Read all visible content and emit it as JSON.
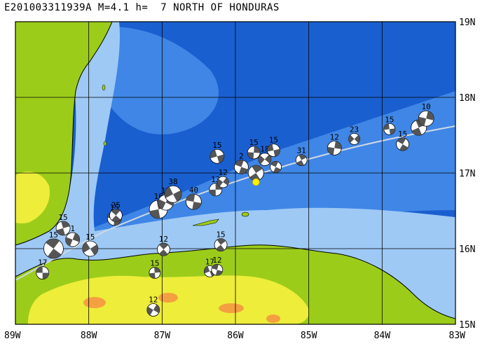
{
  "title": "E201003311939A M=4.1 h=  7 NORTH OF HONDURAS",
  "map": {
    "lon_range": [
      -89,
      -83
    ],
    "lat_range": [
      15,
      19
    ],
    "lon_ticks": [
      {
        "value": -89,
        "label": "89W"
      },
      {
        "value": -88,
        "label": "88W"
      },
      {
        "value": -87,
        "label": "87W"
      },
      {
        "value": -86,
        "label": "86W"
      },
      {
        "value": -85,
        "label": "85W"
      },
      {
        "value": -84,
        "label": "84W"
      },
      {
        "value": -83,
        "label": "83W"
      }
    ],
    "lat_ticks": [
      {
        "value": 19,
        "label": "19N"
      },
      {
        "value": 18,
        "label": "18N"
      },
      {
        "value": 17,
        "label": "17N"
      },
      {
        "value": 16,
        "label": "16N"
      },
      {
        "value": 15,
        "label": "15N"
      }
    ],
    "colors": {
      "deep_ocean": "#1a5fd0",
      "mid_ocean": "#3f86e6",
      "shallow_ocean": "#9ec9f5",
      "lowland": "#9ccc1a",
      "upland": "#eded3a",
      "highland": "#f5a040",
      "epicenter": "#ffee00",
      "fault_line": "#cfd8e6"
    },
    "epicenter": {
      "lon": -85.72,
      "lat": 16.88
    },
    "mechanisms": [
      {
        "lon": -88.63,
        "lat": 15.68,
        "depth": "17",
        "r": 9
      },
      {
        "lon": -88.48,
        "lat": 16.0,
        "depth": "15",
        "r": 14
      },
      {
        "lon": -88.35,
        "lat": 16.27,
        "depth": "15",
        "r": 10
      },
      {
        "lon": -88.22,
        "lat": 16.12,
        "depth": "1",
        "r": 10
      },
      {
        "lon": -87.98,
        "lat": 16.0,
        "depth": "15",
        "r": 11
      },
      {
        "lon": -87.65,
        "lat": 16.4,
        "depth": "15",
        "r": 10
      },
      {
        "lon": -87.63,
        "lat": 16.44,
        "depth": "25",
        "r": 9
      },
      {
        "lon": -87.05,
        "lat": 16.52,
        "depth": "16",
        "r": 13
      },
      {
        "lon": -86.95,
        "lat": 16.61,
        "depth": "12",
        "r": 11
      },
      {
        "lon": -86.85,
        "lat": 16.72,
        "depth": "38",
        "r": 12
      },
      {
        "lon": -86.57,
        "lat": 16.62,
        "depth": "40",
        "r": 11
      },
      {
        "lon": -86.98,
        "lat": 15.99,
        "depth": "12",
        "r": 9
      },
      {
        "lon": -87.1,
        "lat": 15.68,
        "depth": "15",
        "r": 8
      },
      {
        "lon": -87.12,
        "lat": 15.19,
        "depth": "12",
        "r": 9
      },
      {
        "lon": -86.35,
        "lat": 15.7,
        "depth": "17",
        "r": 8
      },
      {
        "lon": -86.25,
        "lat": 15.72,
        "depth": "12",
        "r": 8
      },
      {
        "lon": -86.2,
        "lat": 16.05,
        "depth": "15",
        "r": 9
      },
      {
        "lon": -86.27,
        "lat": 16.78,
        "depth": "13",
        "r": 9
      },
      {
        "lon": -86.17,
        "lat": 16.88,
        "depth": "12",
        "r": 8
      },
      {
        "lon": -86.25,
        "lat": 17.22,
        "depth": "15",
        "r": 10
      },
      {
        "lon": -85.92,
        "lat": 17.08,
        "depth": "2",
        "r": 10
      },
      {
        "lon": -85.72,
        "lat": 17.0,
        "depth": "",
        "r": 11
      },
      {
        "lon": -85.75,
        "lat": 17.27,
        "depth": "15",
        "r": 9
      },
      {
        "lon": -85.6,
        "lat": 17.18,
        "depth": "18",
        "r": 9
      },
      {
        "lon": -85.48,
        "lat": 17.3,
        "depth": "15",
        "r": 9
      },
      {
        "lon": -85.45,
        "lat": 17.08,
        "depth": "",
        "r": 8
      },
      {
        "lon": -85.1,
        "lat": 17.17,
        "depth": "31",
        "r": 8
      },
      {
        "lon": -84.65,
        "lat": 17.33,
        "depth": "12",
        "r": 10
      },
      {
        "lon": -84.38,
        "lat": 17.45,
        "depth": "23",
        "r": 8
      },
      {
        "lon": -83.9,
        "lat": 17.58,
        "depth": "15",
        "r": 8
      },
      {
        "lon": -83.72,
        "lat": 17.38,
        "depth": "15",
        "r": 9
      },
      {
        "lon": -83.5,
        "lat": 17.6,
        "depth": "",
        "r": 11
      },
      {
        "lon": -83.4,
        "lat": 17.72,
        "depth": "10",
        "r": 11
      }
    ]
  }
}
